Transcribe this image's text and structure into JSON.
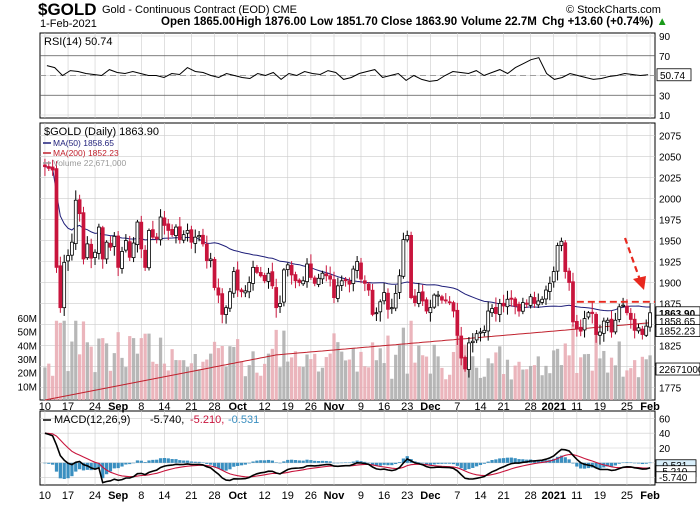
{
  "header": {
    "symbol": "$GOLD",
    "name": "Gold - Continuous Contract (EOD)",
    "exchange": "CME",
    "copyright": "© StockCharts.com",
    "date": "1-Feb-2021",
    "open_label": "Open",
    "open": "1865.00",
    "high_label": "High",
    "high": "1876.00",
    "low_label": "Low",
    "low": "1851.70",
    "close_label": "Close",
    "close": "1863.90",
    "volume_label": "Volume",
    "volume": "22.7M",
    "chg_label": "Chg",
    "chg": "+13.60 (+0.74%)",
    "chg_arrow": "▲"
  },
  "chart_data": [
    {
      "type": "line",
      "title": "RSI(14) 50.74",
      "series": [
        {
          "name": "RSI(14)",
          "last": 50.74,
          "values": [
            60,
            58,
            50,
            55,
            54,
            52,
            51,
            50,
            56,
            53,
            52,
            54,
            52,
            50,
            50,
            48,
            52,
            51,
            58,
            54,
            53,
            50,
            48,
            52,
            50,
            48,
            47,
            52,
            50,
            53,
            46,
            52,
            50,
            54,
            52,
            51,
            55,
            53,
            46,
            48,
            52,
            54,
            56,
            48,
            50,
            52,
            45,
            50,
            46,
            44,
            45,
            50,
            54,
            53,
            52,
            55,
            50,
            53,
            56,
            52,
            58,
            62,
            66,
            68,
            52,
            46,
            48,
            52,
            50,
            48,
            46,
            47,
            49,
            50,
            52,
            51,
            50,
            50.74
          ]
        }
      ],
      "ylim": [
        10,
        90
      ],
      "yticks": [
        10,
        30,
        50,
        70,
        90
      ],
      "reference_lines": [
        30,
        70
      ]
    },
    {
      "type": "candlestick",
      "title": "$GOLD (Daily) 1863.90",
      "x_labels": [
        "10",
        "17",
        "24",
        "Sep",
        "8",
        "14",
        "21",
        "28",
        "Oct",
        "12",
        "19",
        "26",
        "Nov",
        "9",
        "16",
        "23",
        "Dec",
        "7",
        "14",
        "21",
        "28",
        "2021",
        "11",
        "19",
        "25",
        "Feb"
      ],
      "ylim": [
        1760,
        2090
      ],
      "yticks": [
        1775,
        1800,
        1825,
        1850,
        1875,
        1900,
        1925,
        1950,
        1975,
        2000,
        2025,
        2050,
        2075
      ],
      "closes": [
        2038,
        2036,
        2034,
        1918,
        1870,
        1924,
        1932,
        1948,
        1998,
        1982,
        1928,
        1946,
        1929,
        1936,
        1966,
        1928,
        1948,
        1942,
        1955,
        1918,
        1937,
        1950,
        1930,
        1947,
        1972,
        1940,
        1918,
        1962,
        1954,
        1952,
        1978,
        1968,
        1962,
        1957,
        1966,
        1951,
        1957,
        1962,
        1948,
        1954,
        1956,
        1946,
        1926,
        1928,
        1894,
        1885,
        1862,
        1870,
        1889,
        1913,
        1891,
        1889,
        1890,
        1900,
        1918,
        1912,
        1908,
        1902,
        1911,
        1896,
        1870,
        1875,
        1915,
        1921,
        1909,
        1902,
        1900,
        1902,
        1922,
        1906,
        1899,
        1905,
        1911,
        1908,
        1904,
        1882,
        1896,
        1902,
        1902,
        1898,
        1916,
        1925,
        1904,
        1899,
        1891,
        1862,
        1864,
        1877,
        1888,
        1868,
        1870,
        1887,
        1908,
        1951,
        1956,
        1882,
        1876,
        1888,
        1878,
        1866,
        1870,
        1885,
        1885,
        1879,
        1878,
        1876,
        1866,
        1837,
        1810,
        1797,
        1828,
        1830,
        1839,
        1841,
        1843,
        1866,
        1869,
        1863,
        1875,
        1872,
        1880,
        1880,
        1872,
        1866,
        1876,
        1874,
        1883,
        1875,
        1878,
        1880,
        1891,
        1899,
        1913,
        1944,
        1949,
        1913,
        1900,
        1853,
        1845,
        1842,
        1857,
        1864,
        1863,
        1838,
        1841,
        1854,
        1855,
        1841,
        1855,
        1871,
        1873,
        1864,
        1856,
        1843,
        1846,
        1838,
        1848,
        1863.9
      ],
      "volume_axis": {
        "labels": [
          "10M",
          "20M",
          "30M",
          "40M",
          "50M",
          "60M"
        ],
        "max": 60,
        "unit": "M"
      },
      "volume_last_label": "22671000",
      "markers": {
        "resistance_price": 1877
      },
      "series": [
        {
          "name": "MA(50) 1858.65",
          "color": "#1f1f7a"
        },
        {
          "name": "MA(200) 1852.23",
          "color": "#c0202c"
        },
        {
          "name": "Volume 22,671,000",
          "color": "#9b9b9b"
        }
      ],
      "price_badges": {
        "close": "1863.90",
        "ma50": "1858.65",
        "ma200": "1852.23"
      }
    },
    {
      "type": "line",
      "title": "MACD(12,26,9) -5.740, -5.210, -0.531",
      "title_parts": [
        "MACD(12,26,9)",
        "-5.740,",
        "-5.210,",
        "-0.531"
      ],
      "ylim": [
        -30,
        70
      ],
      "yticks": [
        -20,
        0,
        20,
        40,
        60
      ],
      "badges": [
        "-0.531",
        "-5.210",
        "-5.740"
      ],
      "x_labels": [
        "10",
        "17",
        "24",
        "Sep",
        "8",
        "14",
        "21",
        "28",
        "Oct",
        "12",
        "19",
        "26",
        "Nov",
        "9",
        "16",
        "23",
        "Dec",
        "7",
        "14",
        "21",
        "28",
        "2021",
        "11",
        "19",
        "25",
        "Feb"
      ]
    }
  ],
  "colors": {
    "up": "#000000",
    "down": "#c8143c",
    "volume_up": "#aaaaaa",
    "volume_down": "#e8a8b0",
    "ma50": "#1f1f7a",
    "ma200": "#c0202c",
    "grid": "#cccccc",
    "macd": "#000000",
    "signal": "#c8143c",
    "hist": "#3a8fc0",
    "arrow": "#e8281e"
  }
}
